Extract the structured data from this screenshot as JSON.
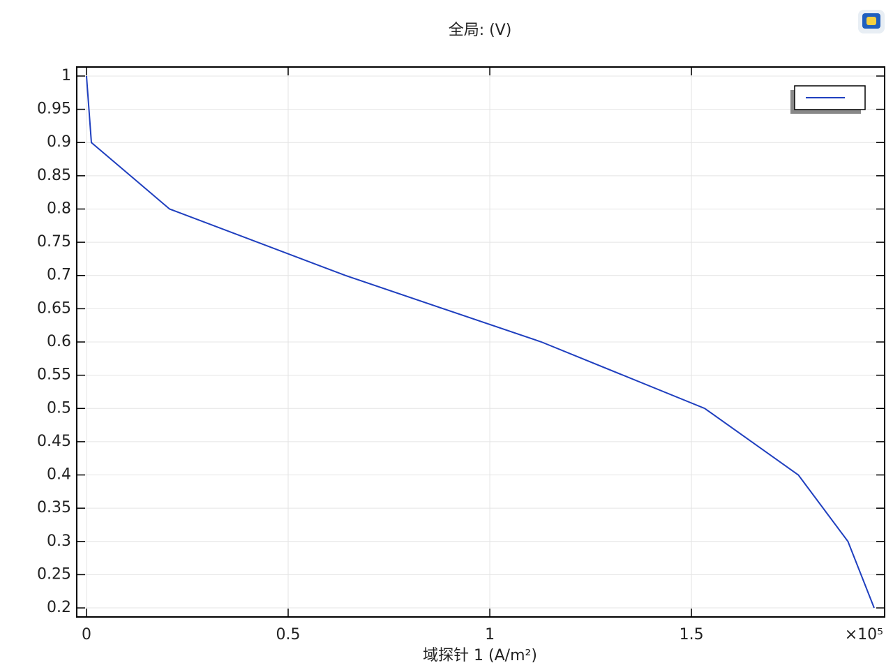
{
  "chart_data": {
    "type": "line",
    "title": "全局: (V)",
    "x_label": "域探针 1 (A/m²)",
    "x_multiplier": "×10⁵",
    "x": [
      0,
      0.0121,
      0.206,
      0.642,
      1.128,
      1.533,
      1.765,
      1.888,
      1.953
    ],
    "series": [
      {
        "color": "#1f3fbf",
        "values": [
          1,
          0.9,
          0.8,
          0.7,
          0.6,
          0.5,
          0.4,
          0.3,
          0.2
        ]
      }
    ],
    "xlim": [
      -0.0242,
      1.979
    ],
    "ylim": [
      0.1864,
      1.0136
    ],
    "xticks": [
      0,
      0.5,
      1,
      1.5
    ],
    "yticks": [
      0.2,
      0.25,
      0.3,
      0.35,
      0.4,
      0.45,
      0.5,
      0.55,
      0.6,
      0.65,
      0.7,
      0.75,
      0.8,
      0.85,
      0.9,
      0.95,
      1
    ],
    "grid": true,
    "legend": "upper right"
  }
}
